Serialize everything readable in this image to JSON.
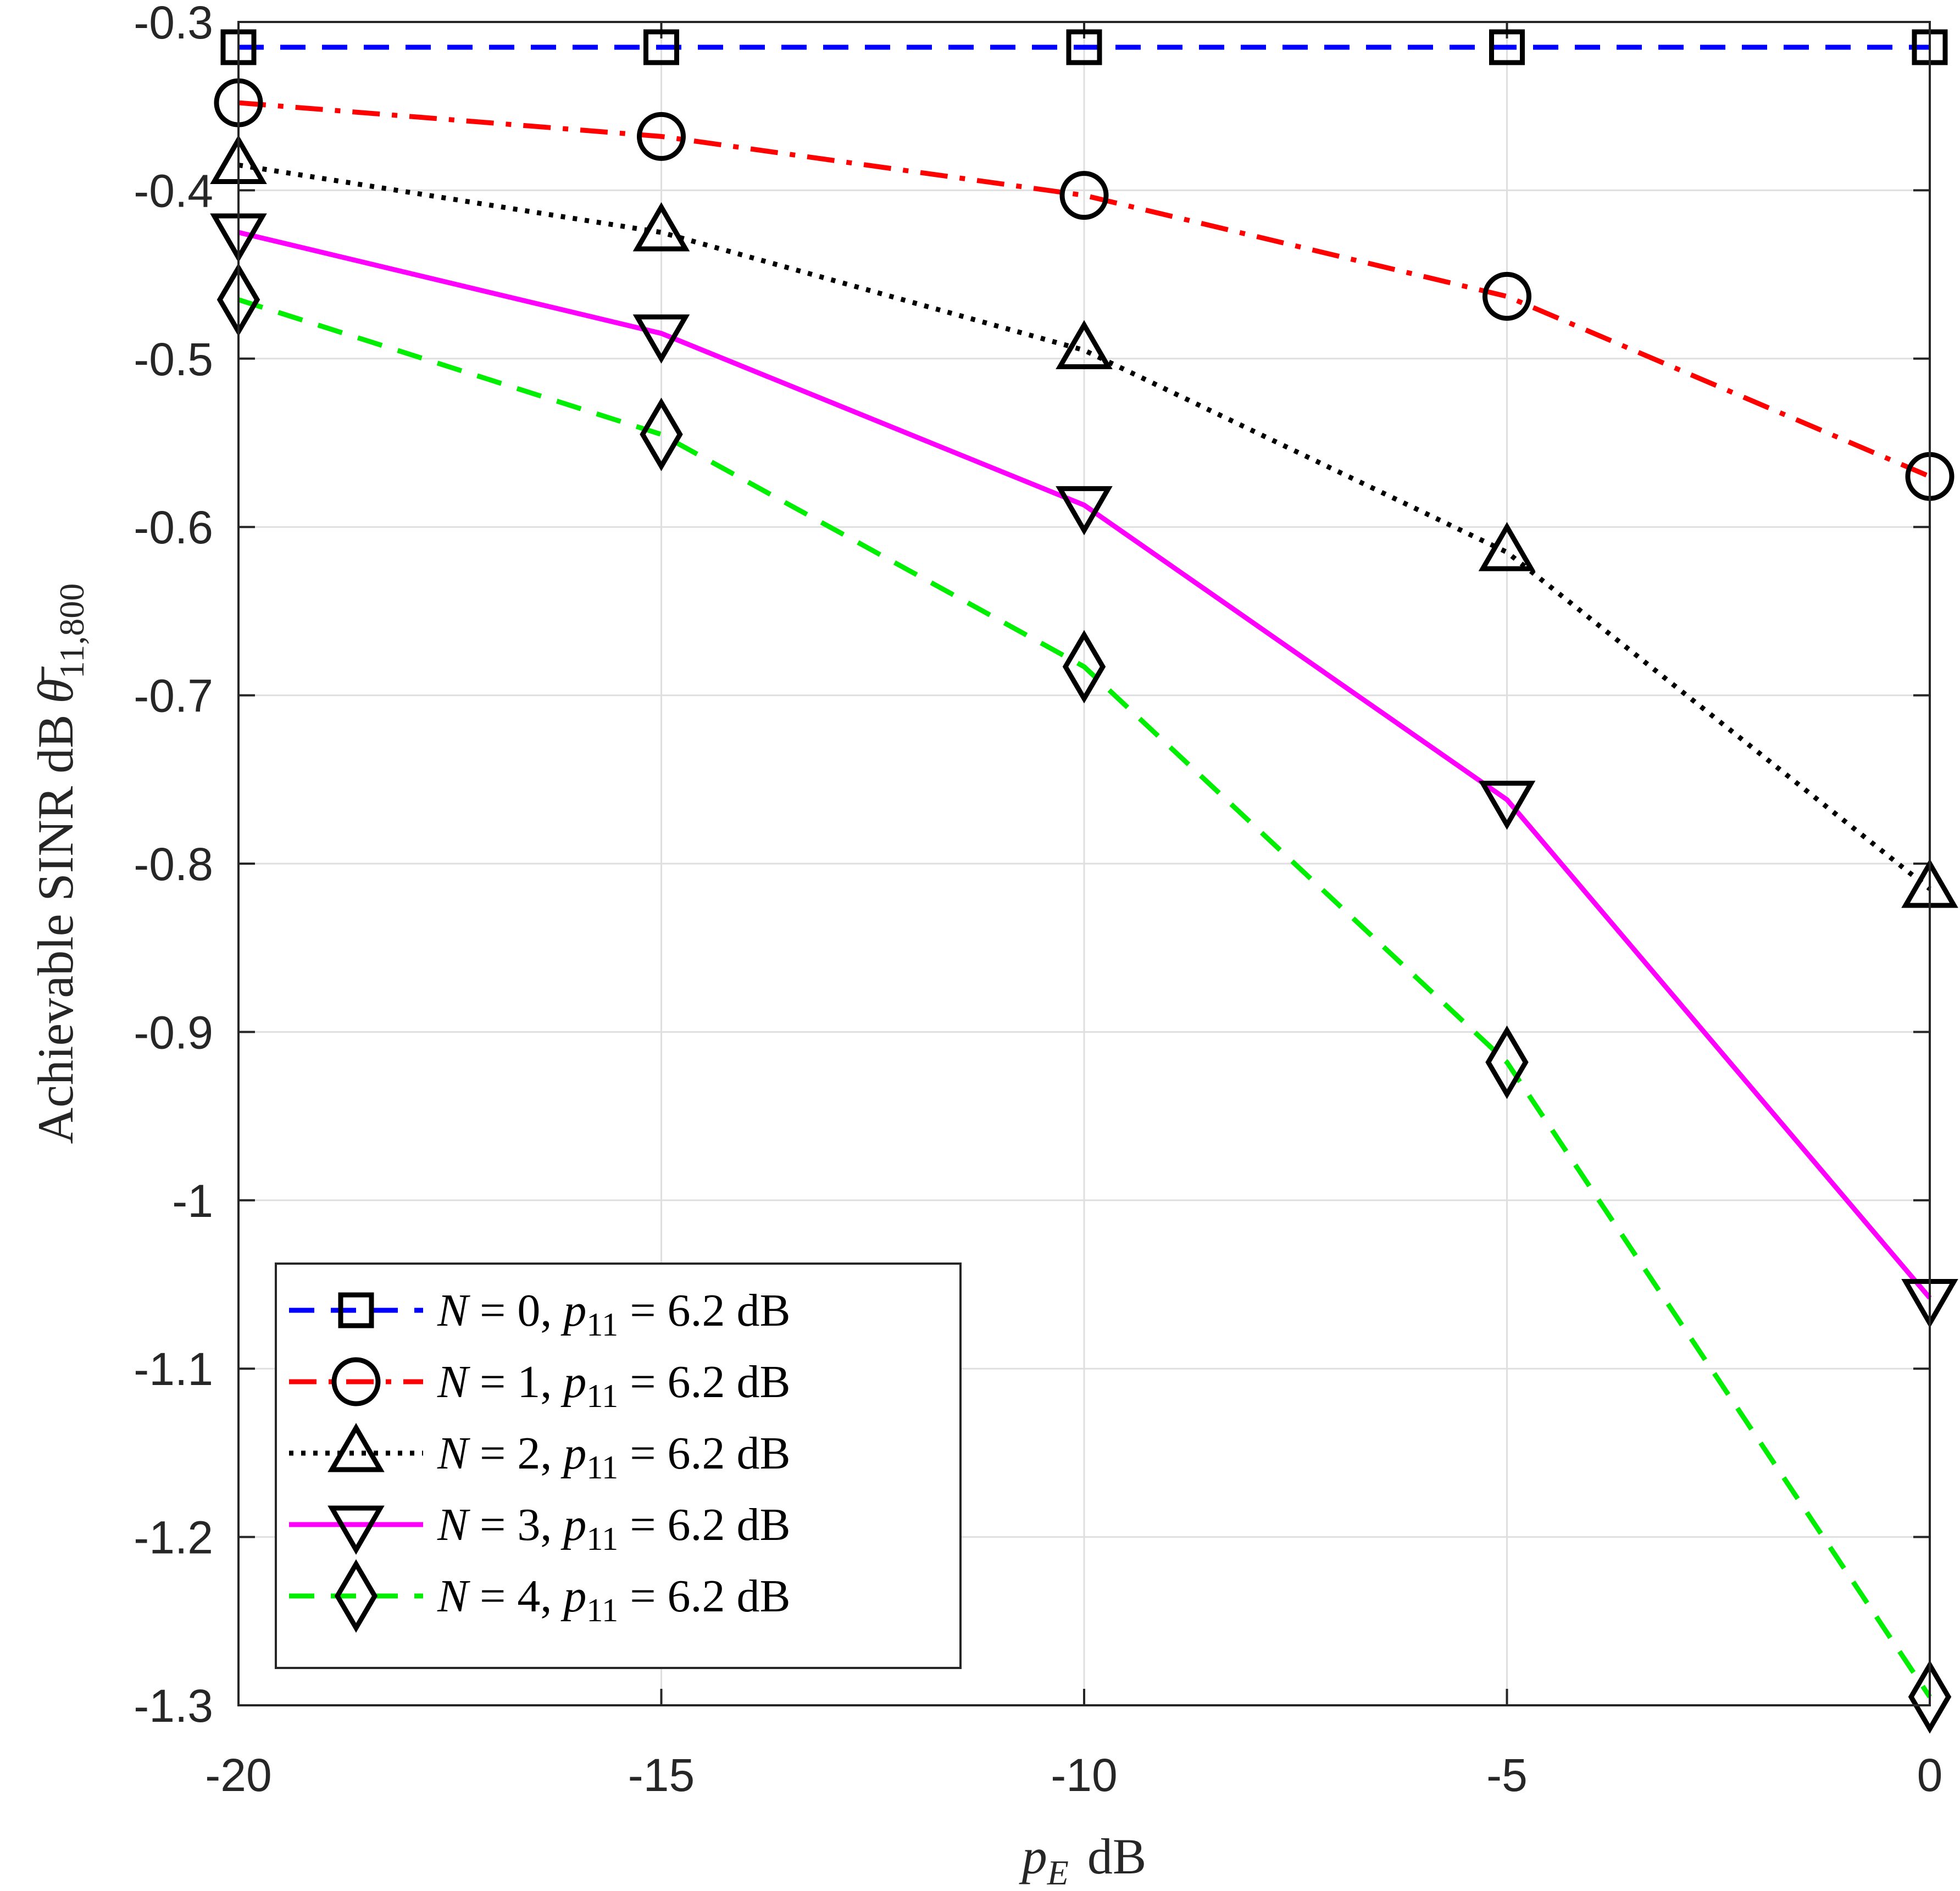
{
  "chart_data": {
    "type": "line",
    "title": "",
    "xlabel": {
      "var": "p",
      "sub": "E",
      "unit": "dB"
    },
    "ylabel": {
      "prefix": "Achievable SINR dB",
      "var": "θ̄",
      "sub": "11,800"
    },
    "xlim": [
      -20,
      0
    ],
    "ylim": [
      -1.3,
      -0.3
    ],
    "grid": true,
    "legend_position": "bottom-left",
    "x": [
      -20,
      -15,
      -10,
      -5,
      0
    ],
    "x_tick_labels": [
      "-20",
      "-15",
      "-10",
      "-5",
      "0"
    ],
    "y_ticks": [
      -0.3,
      -0.4,
      -0.5,
      -0.6,
      -0.7,
      -0.8,
      -0.9,
      -1.0,
      -1.1,
      -1.2,
      -1.3
    ],
    "y_tick_labels": [
      "-0.3",
      "-0.4",
      "-0.5",
      "-0.6",
      "-0.7",
      "-0.8",
      "-0.9",
      "-1",
      "-1.1",
      "-1.2",
      "-1.3"
    ],
    "series": [
      {
        "name": "N = 0, p11 = 6.2 dB",
        "N": "0",
        "p11": "6.2",
        "unit": "dB",
        "color": "#0000ff",
        "style": "dashed",
        "marker": "square",
        "values": [
          -0.315,
          -0.315,
          -0.315,
          -0.315,
          -0.315
        ]
      },
      {
        "name": "N = 1, p11 = 6.2 dB",
        "N": "1",
        "p11": "6.2",
        "unit": "dB",
        "color": "#ff0000",
        "style": "dashdot",
        "marker": "circle",
        "values": [
          -0.348,
          -0.368,
          -0.403,
          -0.463,
          -0.57
        ]
      },
      {
        "name": "N = 2, p11 = 6.2 dB",
        "N": "2",
        "p11": "6.2",
        "unit": "dB",
        "color": "#000000",
        "style": "dotted",
        "marker": "triangle-up",
        "values": [
          -0.385,
          -0.425,
          -0.495,
          -0.615,
          -0.815
        ]
      },
      {
        "name": "N = 3, p11 = 6.2 dB",
        "N": "3",
        "p11": "6.2",
        "unit": "dB",
        "color": "#ff00ff",
        "style": "solid",
        "marker": "triangle-down",
        "values": [
          -0.425,
          -0.485,
          -0.587,
          -0.762,
          -1.058
        ]
      },
      {
        "name": "N = 4, p11 = 6.2 dB",
        "N": "4",
        "p11": "6.2",
        "unit": "dB",
        "color": "#00ee00",
        "style": "dashed",
        "marker": "diamond",
        "values": [
          -0.465,
          -0.545,
          -0.683,
          -0.918,
          -1.295
        ]
      }
    ]
  }
}
